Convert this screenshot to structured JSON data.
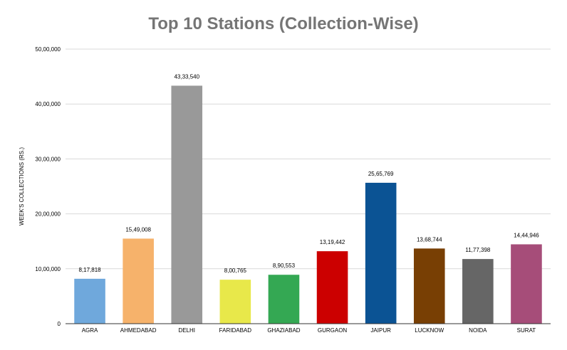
{
  "chart_data": {
    "type": "bar",
    "title": "Top 10 Stations (Collection-Wise)",
    "ylabel": "WEEK'S COLLECTIONS (RS.)",
    "xlabel": "",
    "ylim": [
      0,
      5000000
    ],
    "yticks": [
      0,
      1000000,
      2000000,
      3000000,
      4000000,
      5000000
    ],
    "ytick_labels": [
      "0",
      "10,00,000",
      "20,00,000",
      "30,00,000",
      "40,00,000",
      "50,00,000"
    ],
    "grid": true,
    "categories": [
      "AGRA",
      "AHMEDABAD",
      "DELHI",
      "FARIDABAD",
      "GHAZIABAD",
      "GURGAON",
      "JAIPUR",
      "LUCKNOW",
      "NOIDA",
      "SURAT"
    ],
    "values": [
      817818,
      1549008,
      4333540,
      800765,
      890553,
      1319442,
      2565769,
      1368744,
      1177398,
      1444946
    ],
    "data_labels": [
      "8,17,818",
      "15,49,008",
      "43,33,540",
      "8,00,765",
      "8,90,553",
      "13,19,442",
      "25,65,769",
      "13,68,744",
      "11,77,398",
      "14,44,946"
    ],
    "colors": [
      "#6fa8dc",
      "#f6b26b",
      "#999999",
      "#e8e84a",
      "#34a853",
      "#cc0000",
      "#0b5394",
      "#783f04",
      "#666666",
      "#a64d79"
    ]
  }
}
